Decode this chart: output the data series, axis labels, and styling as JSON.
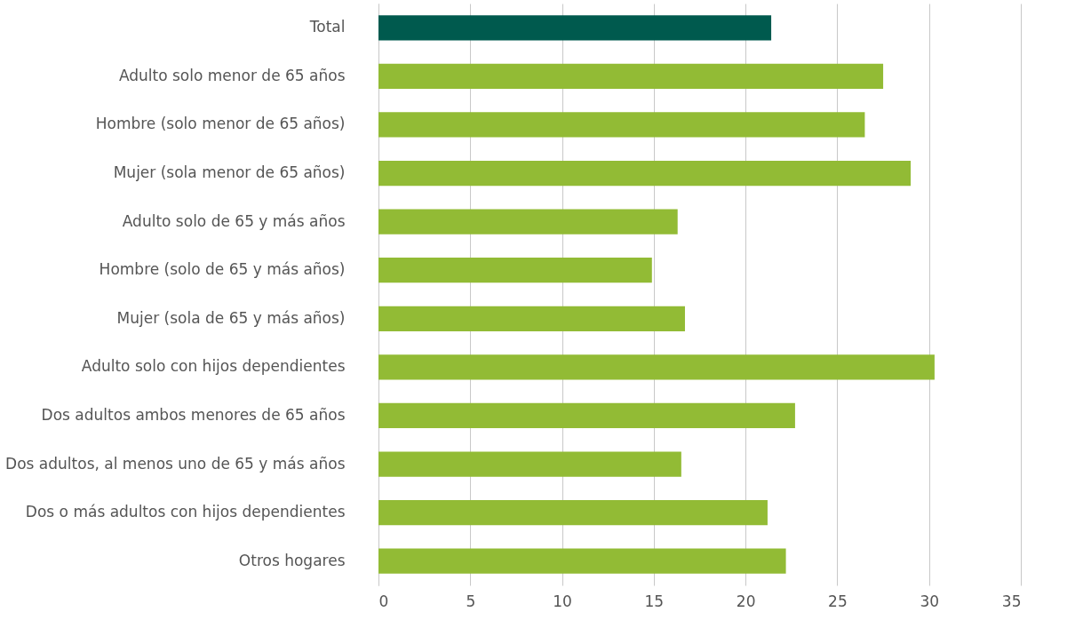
{
  "chart_data": {
    "type": "bar",
    "orientation": "horizontal",
    "categories": [
      "Total",
      "Adulto solo menor de 65 años",
      "Hombre (solo menor de 65 años)",
      "Mujer (sola menor de 65 años)",
      "Adulto solo de 65 y más años",
      "Hombre (solo de 65 y más años)",
      "Mujer (sola de 65 y más años)",
      "Adulto solo con hijos dependientes",
      "Dos adultos ambos menores de 65 años",
      "Dos adultos, al menos uno de 65 y más años",
      "Dos o más adultos con hijos dependientes",
      "Otros hogares"
    ],
    "values": [
      21.4,
      27.5,
      26.5,
      29.0,
      16.3,
      14.9,
      16.7,
      30.3,
      22.7,
      16.5,
      21.2,
      22.2
    ],
    "colors": [
      "#005a4e",
      "#92bb35",
      "#92bb35",
      "#92bb35",
      "#92bb35",
      "#92bb35",
      "#92bb35",
      "#92bb35",
      "#92bb35",
      "#92bb35",
      "#92bb35",
      "#92bb35"
    ],
    "xlim": [
      0,
      35
    ],
    "xticks": [
      0,
      5,
      10,
      15,
      20,
      25,
      30,
      35
    ],
    "grid": "x"
  }
}
